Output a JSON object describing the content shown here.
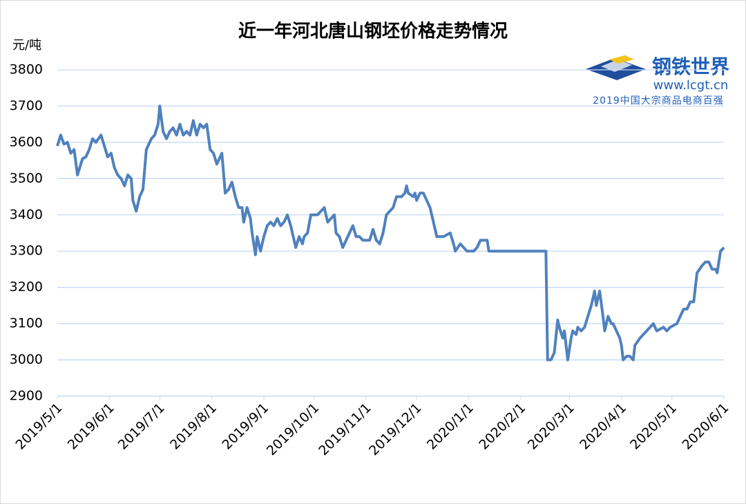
{
  "chart_data": {
    "type": "line",
    "title": "近一年河北唐山钢坯价格走势情况",
    "y_label": "元/吨",
    "xlim": [
      "2019/5/1",
      "2020/6/1"
    ],
    "xticks": [
      "2019/5/1",
      "2019/6/1",
      "2019/7/1",
      "2019/8/1",
      "2019/9/1",
      "2019/10/1",
      "2019/11/1",
      "2019/12/1",
      "2020/1/1",
      "2020/2/1",
      "2020/3/1",
      "2020/4/1",
      "2020/5/1",
      "2020/6/1"
    ],
    "ylim": [
      2900,
      3800
    ],
    "yticks": [
      2900,
      3000,
      3100,
      3200,
      3300,
      3400,
      3500,
      3600,
      3700,
      3800
    ],
    "grid": true,
    "x": [
      "2019/5/1",
      "2019/5/3",
      "2019/5/5",
      "2019/5/7",
      "2019/5/9",
      "2019/5/11",
      "2019/5/13",
      "2019/5/16",
      "2019/5/18",
      "2019/5/20",
      "2019/5/22",
      "2019/5/24",
      "2019/5/27",
      "2019/5/29",
      "2019/5/31",
      "2019/6/2",
      "2019/6/4",
      "2019/6/6",
      "2019/6/8",
      "2019/6/10",
      "2019/6/12",
      "2019/6/14",
      "2019/6/15",
      "2019/6/17",
      "2019/6/19",
      "2019/6/21",
      "2019/6/23",
      "2019/6/26",
      "2019/6/28",
      "2019/6/30",
      "2019/7/1",
      "2019/7/3",
      "2019/7/5",
      "2019/7/7",
      "2019/7/9",
      "2019/7/11",
      "2019/7/13",
      "2019/7/15",
      "2019/7/17",
      "2019/7/19",
      "2019/7/21",
      "2019/7/23",
      "2019/7/25",
      "2019/7/27",
      "2019/7/29",
      "2019/7/31",
      "2019/8/2",
      "2019/8/4",
      "2019/8/7",
      "2019/8/9",
      "2019/8/11",
      "2019/8/13",
      "2019/8/15",
      "2019/8/17",
      "2019/8/19",
      "2019/8/20",
      "2019/8/22",
      "2019/8/24",
      "2019/8/25",
      "2019/8/27",
      "2019/8/28",
      "2019/8/30",
      "2019/9/1",
      "2019/9/3",
      "2019/9/5",
      "2019/9/7",
      "2019/9/9",
      "2019/9/11",
      "2019/9/13",
      "2019/9/15",
      "2019/9/17",
      "2019/9/19",
      "2019/9/20",
      "2019/9/22",
      "2019/9/24",
      "2019/9/25",
      "2019/9/27",
      "2019/9/29",
      "2019/10/3",
      "2019/10/7",
      "2019/10/9",
      "2019/10/11",
      "2019/10/13",
      "2019/10/14",
      "2019/10/16",
      "2019/10/18",
      "2019/10/20",
      "2019/10/22",
      "2019/10/24",
      "2019/10/26",
      "2019/10/28",
      "2019/10/30",
      "2019/11/3",
      "2019/11/5",
      "2019/11/7",
      "2019/11/9",
      "2019/11/11",
      "2019/11/13",
      "2019/11/15",
      "2019/11/17",
      "2019/11/19",
      "2019/11/22",
      "2019/11/24",
      "2019/11/25",
      "2019/11/26",
      "2019/11/29",
      "2019/11/30",
      "2019/12/1",
      "2019/12/3",
      "2019/12/5",
      "2019/12/7",
      "2019/12/9",
      "2019/12/11",
      "2019/12/13",
      "2019/12/17",
      "2019/12/21",
      "2019/12/23",
      "2019/12/24",
      "2019/12/27",
      "2019/12/29",
      "2019/12/31",
      "2020/1/4",
      "2020/1/6",
      "2020/1/8",
      "2020/1/12",
      "2020/1/13",
      "2020/2/16",
      "2020/2/17",
      "2020/2/19",
      "2020/2/21",
      "2020/2/23",
      "2020/2/24",
      "2020/2/26",
      "2020/2/27",
      "2020/2/29",
      "2020/3/2",
      "2020/3/3",
      "2020/3/5",
      "2020/3/6",
      "2020/3/8",
      "2020/3/10",
      "2020/3/12",
      "2020/3/14",
      "2020/3/16",
      "2020/3/17",
      "2020/3/19",
      "2020/3/21",
      "2020/3/22",
      "2020/3/24",
      "2020/3/26",
      "2020/3/27",
      "2020/3/29",
      "2020/3/31",
      "2020/4/1",
      "2020/4/2",
      "2020/4/4",
      "2020/4/6",
      "2020/4/8",
      "2020/4/9",
      "2020/4/12",
      "2020/4/14",
      "2020/4/16",
      "2020/4/18",
      "2020/4/20",
      "2020/4/22",
      "2020/4/26",
      "2020/4/28",
      "2020/4/30",
      "2020/5/4",
      "2020/5/6",
      "2020/5/8",
      "2020/5/10",
      "2020/5/12",
      "2020/5/14",
      "2020/5/16",
      "2020/5/19",
      "2020/5/21",
      "2020/5/23",
      "2020/5/25",
      "2020/5/27",
      "2020/5/28",
      "2020/5/30",
      "2020/6/1"
    ],
    "series": [
      {
        "name": "唐山钢坯价格",
        "color": "#4f81bd",
        "values": [
          3590,
          3620,
          3595,
          3600,
          3570,
          3580,
          3510,
          3555,
          3560,
          3580,
          3610,
          3600,
          3620,
          3590,
          3560,
          3570,
          3530,
          3510,
          3500,
          3480,
          3510,
          3500,
          3440,
          3410,
          3450,
          3470,
          3580,
          3610,
          3620,
          3650,
          3700,
          3630,
          3610,
          3630,
          3640,
          3620,
          3650,
          3620,
          3630,
          3620,
          3660,
          3620,
          3650,
          3640,
          3650,
          3580,
          3570,
          3540,
          3570,
          3460,
          3470,
          3490,
          3450,
          3420,
          3420,
          3380,
          3420,
          3390,
          3350,
          3290,
          3340,
          3300,
          3340,
          3370,
          3380,
          3370,
          3390,
          3370,
          3380,
          3400,
          3370,
          3330,
          3310,
          3340,
          3320,
          3340,
          3350,
          3400,
          3400,
          3420,
          3380,
          3390,
          3400,
          3350,
          3340,
          3310,
          3330,
          3350,
          3370,
          3340,
          3340,
          3330,
          3330,
          3360,
          3330,
          3320,
          3350,
          3400,
          3410,
          3420,
          3450,
          3450,
          3460,
          3480,
          3460,
          3450,
          3460,
          3440,
          3460,
          3460,
          3440,
          3420,
          3380,
          3340,
          3340,
          3350,
          3320,
          3300,
          3320,
          3310,
          3300,
          3300,
          3310,
          3330,
          3330,
          3300,
          3300,
          3000,
          3000,
          3020,
          3110,
          3090,
          3060,
          3080,
          3000,
          3060,
          3080,
          3070,
          3090,
          3080,
          3090,
          3120,
          3150,
          3190,
          3150,
          3190,
          3120,
          3080,
          3120,
          3100,
          3100,
          3080,
          3060,
          3040,
          3000,
          3010,
          3010,
          3000,
          3040,
          3060,
          3070,
          3080,
          3090,
          3100,
          3080,
          3090,
          3080,
          3090,
          3100,
          3120,
          3140,
          3140,
          3160,
          3160,
          3240,
          3260,
          3270,
          3270,
          3250,
          3250,
          3240,
          3300,
          3310
        ]
      }
    ]
  },
  "logo": {
    "name": "钢铁世界",
    "url": "www.lcgt.cn",
    "tagline": "2019中国大宗商品电商百强"
  }
}
